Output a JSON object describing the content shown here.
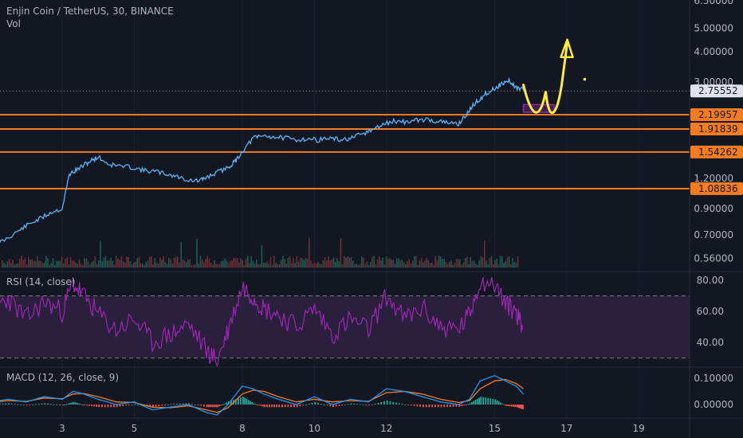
{
  "header": {
    "symbol_title": "Enjin Coin / TetherUS, 30, BINANCE",
    "volume_label": "Vol"
  },
  "indicators": {
    "rsi_label": "RSI (14, close)",
    "macd_label": "MACD (12, 26, close, 9)"
  },
  "colors": {
    "background": "#131722",
    "price_line": "#5fb3f5",
    "level_line": "#f57c1f",
    "rsi_line": "#9c27b0",
    "rsi_band": "#2a1f3d",
    "macd_line": "#2196f3",
    "signal_line": "#f57c1f",
    "volume_up": "#1f5a52",
    "volume_down": "#6b2f36",
    "annotation_arrow": "#ffeb3b",
    "annotation_box": "#9c27b0",
    "last_price_tag": "#e0e3eb"
  },
  "chart_data": {
    "type": "line",
    "price_axis": {
      "scale": "log",
      "tick_labels": [
        "6.50000",
        "5.00000",
        "4.00000",
        "3.00000",
        "1.20000",
        "0.90000",
        "0.70000",
        "0.56000"
      ],
      "tick_values": [
        6.5,
        5.0,
        4.0,
        3.0,
        1.2,
        0.9,
        0.7,
        0.56
      ]
    },
    "time_axis": {
      "tick_labels": [
        "3",
        "5",
        "8",
        "10",
        "12",
        "15",
        "17",
        "19"
      ],
      "tick_days": [
        3,
        5,
        8,
        10,
        12,
        15,
        17,
        19
      ]
    },
    "price_series": {
      "x_day": [
        1.0,
        1.4,
        1.8,
        2.1,
        2.4,
        2.7,
        3.0,
        3.2,
        3.4,
        3.6,
        3.8,
        4.0,
        4.3,
        4.6,
        5.0,
        5.3,
        5.6,
        5.9,
        6.2,
        6.5,
        6.8,
        7.0,
        7.3,
        7.6,
        7.8,
        8.0,
        8.3,
        8.6,
        8.9,
        9.2,
        9.5,
        9.8,
        10.1,
        10.4,
        10.7,
        11.0,
        11.3,
        11.6,
        11.9,
        12.2,
        12.5,
        12.8,
        13.1,
        13.4,
        13.7,
        14.0,
        14.2,
        14.4,
        14.6,
        14.8,
        15.0,
        15.2,
        15.4,
        15.6,
        15.8
      ],
      "close": [
        0.62,
        0.67,
        0.73,
        0.78,
        0.82,
        0.87,
        0.9,
        1.25,
        1.3,
        1.36,
        1.42,
        1.47,
        1.37,
        1.35,
        1.33,
        1.29,
        1.28,
        1.25,
        1.22,
        1.18,
        1.17,
        1.21,
        1.27,
        1.33,
        1.41,
        1.55,
        1.76,
        1.8,
        1.78,
        1.76,
        1.73,
        1.75,
        1.73,
        1.76,
        1.73,
        1.75,
        1.82,
        1.9,
        2.0,
        2.07,
        2.05,
        2.08,
        2.1,
        2.07,
        2.03,
        2.02,
        2.18,
        2.4,
        2.56,
        2.72,
        2.82,
        2.95,
        3.03,
        2.85,
        2.78
      ]
    },
    "last_price": 2.75552,
    "last_price_label": "2.75552",
    "horizontal_levels": [
      {
        "value": 2.19957,
        "label": "2.19957"
      },
      {
        "value": 1.91839,
        "label": "1.91839"
      },
      {
        "value": 1.54262,
        "label": "1.54262"
      },
      {
        "value": 1.08836,
        "label": "1.08836"
      }
    ],
    "annotation": {
      "type": "projected-path",
      "start_day": 15.8,
      "start_price": 2.75,
      "target_price": 4.7,
      "box_low": 2.25,
      "box_high": 2.42
    },
    "rsi": {
      "axis_tick_labels": [
        "80.00",
        "60.00",
        "40.00"
      ],
      "axis_tick_values": [
        80,
        60,
        40
      ],
      "upper_band": 70,
      "lower_band": 30,
      "x_day": [
        1.0,
        1.5,
        2.0,
        2.5,
        3.0,
        3.3,
        3.6,
        4.0,
        4.5,
        5.0,
        5.5,
        6.0,
        6.5,
        7.0,
        7.3,
        7.6,
        8.0,
        8.3,
        8.6,
        9.0,
        9.5,
        10.0,
        10.5,
        11.0,
        11.5,
        12.0,
        12.5,
        13.0,
        13.5,
        14.0,
        14.3,
        14.6,
        15.0,
        15.3,
        15.6,
        15.8
      ],
      "values": [
        62,
        68,
        55,
        66,
        60,
        78,
        70,
        58,
        48,
        55,
        40,
        45,
        52,
        35,
        28,
        48,
        76,
        70,
        62,
        58,
        50,
        62,
        45,
        55,
        48,
        70,
        55,
        62,
        50,
        48,
        58,
        80,
        78,
        65,
        60,
        48
      ]
    },
    "macd": {
      "axis_tick_labels": [
        "0.10000",
        "0.00000"
      ],
      "axis_tick_values": [
        0.1,
        0.0
      ],
      "x_day": [
        1.0,
        1.5,
        2.0,
        2.5,
        3.0,
        3.3,
        3.6,
        4.0,
        4.5,
        5.0,
        5.5,
        6.0,
        6.5,
        7.0,
        7.3,
        7.6,
        8.0,
        8.3,
        8.6,
        9.0,
        9.5,
        10.0,
        10.5,
        11.0,
        11.5,
        12.0,
        12.5,
        13.0,
        13.5,
        14.0,
        14.3,
        14.6,
        15.0,
        15.3,
        15.6,
        15.8
      ],
      "macd_values": [
        0.01,
        0.02,
        0.01,
        0.03,
        0.02,
        0.05,
        0.04,
        0.02,
        0.0,
        0.01,
        -0.02,
        -0.01,
        0.0,
        -0.03,
        -0.04,
        0.0,
        0.07,
        0.06,
        0.04,
        0.02,
        0.0,
        0.03,
        0.0,
        0.02,
        0.01,
        0.06,
        0.05,
        0.03,
        0.01,
        0.0,
        0.02,
        0.09,
        0.11,
        0.09,
        0.07,
        0.04
      ],
      "signal_values": [
        0.008,
        0.015,
        0.012,
        0.025,
        0.022,
        0.04,
        0.042,
        0.03,
        0.01,
        0.008,
        -0.01,
        -0.012,
        -0.005,
        -0.02,
        -0.03,
        -0.012,
        0.04,
        0.055,
        0.05,
        0.03,
        0.01,
        0.02,
        0.01,
        0.015,
        0.012,
        0.045,
        0.05,
        0.04,
        0.02,
        0.008,
        0.015,
        0.06,
        0.09,
        0.095,
        0.08,
        0.06
      ]
    }
  }
}
